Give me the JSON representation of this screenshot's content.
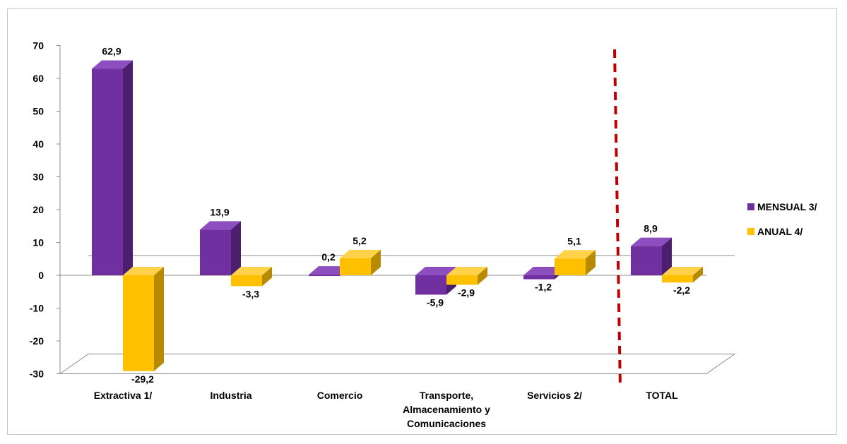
{
  "chart_data": {
    "type": "bar",
    "categories": [
      [
        "Extractiva 1/"
      ],
      [
        "Industria"
      ],
      [
        "Comercio"
      ],
      [
        "Transporte,",
        "Almacenamiento y",
        "Comunicaciones"
      ],
      [
        "Servicios 2/"
      ],
      [
        "TOTAL"
      ]
    ],
    "series": [
      {
        "name": "MENSUAL 3/",
        "values": [
          62.9,
          13.9,
          0.2,
          -5.9,
          -1.2,
          8.9
        ],
        "labels": [
          "62,9",
          "13,9",
          "0,2",
          "-5,9",
          "-1,2",
          "8,9"
        ]
      },
      {
        "name": "ANUAL 4/",
        "values": [
          -29.2,
          -3.3,
          5.2,
          -2.9,
          5.1,
          -2.2
        ],
        "labels": [
          "-29,2",
          "-3,3",
          "5,2",
          "-2,9",
          "5,1",
          "-2,2"
        ]
      }
    ],
    "yticks": [
      70,
      60,
      50,
      40,
      30,
      20,
      10,
      0,
      -10,
      -20,
      -30
    ],
    "ylim": [
      -30,
      70
    ],
    "legend_position": "right",
    "divider_before_category": "TOTAL",
    "colors": {
      "mensual_front": "#7030A0",
      "mensual_top": "#8D4FBF",
      "mensual_side": "#4B1E6E",
      "anual_front": "#FFC000",
      "anual_top": "#FFD24A",
      "anual_side": "#B88A00",
      "divider": "#C00000",
      "axis": "#8C8C8C"
    }
  }
}
